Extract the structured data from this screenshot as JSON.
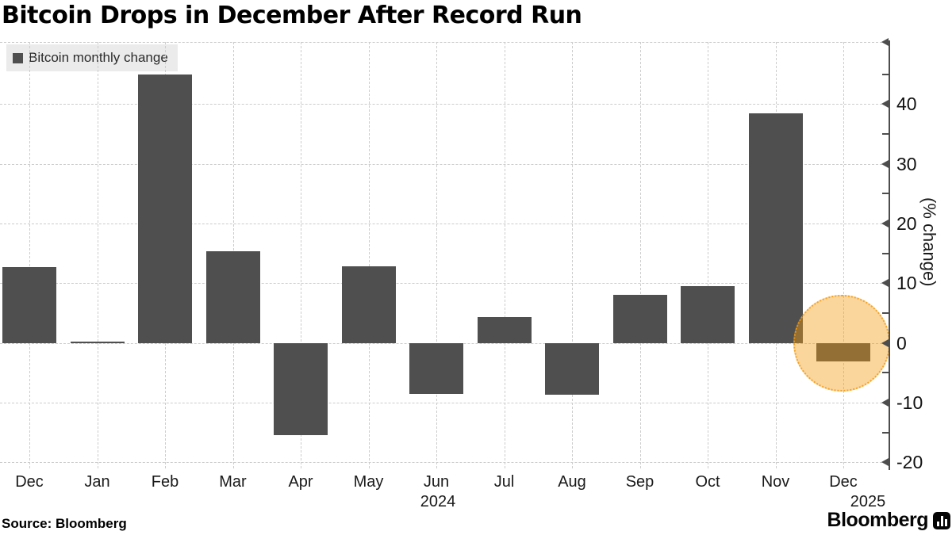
{
  "footer": {
    "source": "Source: Bloomberg",
    "brand": "Bloomberg"
  },
  "chart_data": {
    "type": "bar",
    "title": "Bitcoin Drops in December After Record Run",
    "legend_label": "Bitcoin monthly change",
    "legend_position": "top-left",
    "categories": [
      "Dec",
      "Jan",
      "Feb",
      "Mar",
      "Apr",
      "May",
      "Jun",
      "Jul",
      "Aug",
      "Sep",
      "Oct",
      "Nov",
      "Dec"
    ],
    "values": [
      12.7,
      0.2,
      44.9,
      15.3,
      -15.4,
      12.9,
      -8.5,
      4.3,
      -8.6,
      8.1,
      9.5,
      38.5,
      -3.1
    ],
    "year_labels": [
      {
        "text": "2024",
        "month_index": 6,
        "x_offset": 2
      },
      {
        "text": "2025",
        "month_index": 12,
        "x_offset": 31
      }
    ],
    "ylabel": "(% change)",
    "yticks": [
      40,
      30,
      20,
      10,
      0,
      -10,
      -20
    ],
    "yticks_minor": [
      45,
      35,
      25,
      15,
      5,
      -5,
      -15
    ],
    "ylim": [
      -21,
      50.4
    ],
    "grid": true,
    "y_axis_side": "right",
    "bar_color": "#4f4f4f",
    "grid_color": "#cccccc",
    "axis_color": "#4d4d4d",
    "highlight": {
      "month_index": 12,
      "shape": "circle",
      "color": "#f39c12",
      "opacity": 0.42
    }
  }
}
